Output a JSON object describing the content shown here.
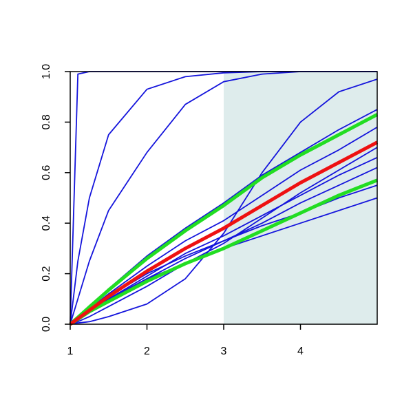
{
  "chart_data": {
    "type": "line",
    "x": [
      1,
      1.1,
      1.25,
      1.5,
      2,
      2.5,
      3,
      3.5,
      4,
      4.5,
      5
    ],
    "xlim": [
      1,
      5
    ],
    "xticks": [
      1,
      2,
      3,
      4
    ],
    "ylim": [
      0,
      1
    ],
    "yticks": [
      {
        "value": 0,
        "label": "0.0"
      },
      {
        "value": 0.2,
        "label": "0.2"
      },
      {
        "value": 0.4,
        "label": "0.4"
      },
      {
        "value": 0.6,
        "label": "0.6"
      },
      {
        "value": 0.8,
        "label": "0.8"
      },
      {
        "value": 1,
        "label": "1.0"
      }
    ],
    "shaded_region": {
      "xlim": [
        3,
        5
      ],
      "color": "#deecec"
    },
    "series": [
      {
        "color": "#1414dc",
        "values": [
          0,
          0.99,
          1,
          1,
          1,
          1,
          1,
          1,
          1,
          1,
          1
        ]
      },
      {
        "color": "#1414dc",
        "values": [
          0,
          0.25,
          0.5,
          0.75,
          0.93,
          0.98,
          0.995,
          1,
          1,
          1,
          1
        ]
      },
      {
        "color": "#1414dc",
        "values": [
          0,
          0.1,
          0.25,
          0.45,
          0.68,
          0.87,
          0.96,
          0.99,
          1,
          1,
          1
        ]
      },
      {
        "color": "#1414dc",
        "values": [
          0,
          0.005,
          0.01,
          0.03,
          0.08,
          0.18,
          0.36,
          0.6,
          0.8,
          0.92,
          0.97
        ]
      },
      {
        "color": "#1414dc",
        "values": [
          0,
          0.028,
          0.07,
          0.14,
          0.27,
          0.38,
          0.48,
          0.59,
          0.68,
          0.77,
          0.85
        ]
      },
      {
        "color": "#1414dc",
        "values": [
          0,
          0.024,
          0.06,
          0.12,
          0.23,
          0.33,
          0.41,
          0.51,
          0.61,
          0.69,
          0.78
        ]
      },
      {
        "color": "#1414dc",
        "values": [
          0,
          0.02,
          0.05,
          0.1,
          0.19,
          0.28,
          0.35,
          0.43,
          0.51,
          0.59,
          0.66
        ]
      },
      {
        "color": "#1414dc",
        "values": [
          0,
          0.019,
          0.047,
          0.095,
          0.18,
          0.26,
          0.33,
          0.4,
          0.48,
          0.55,
          0.62
        ]
      },
      {
        "color": "#1414dc",
        "values": [
          0,
          0.022,
          0.055,
          0.11,
          0.2,
          0.27,
          0.33,
          0.39,
          0.44,
          0.5,
          0.55
        ]
      },
      {
        "color": "#1414dc",
        "values": [
          0,
          0.02,
          0.05,
          0.1,
          0.18,
          0.24,
          0.3,
          0.35,
          0.4,
          0.45,
          0.5
        ]
      },
      {
        "color": "#1414dc",
        "values": [
          0,
          0.01,
          0.03,
          0.07,
          0.15,
          0.24,
          0.32,
          0.42,
          0.52,
          0.61,
          0.7
        ]
      },
      {
        "color": "#22dd22",
        "values": [
          0,
          0.027,
          0.068,
          0.135,
          0.26,
          0.37,
          0.47,
          0.58,
          0.67,
          0.75,
          0.83
        ]
      },
      {
        "color": "#22dd22",
        "values": [
          0,
          0.02,
          0.05,
          0.09,
          0.17,
          0.24,
          0.3,
          0.37,
          0.44,
          0.51,
          0.57
        ]
      },
      {
        "color": "#ee1111",
        "values": [
          0,
          0.022,
          0.055,
          0.11,
          0.21,
          0.3,
          0.38,
          0.47,
          0.56,
          0.64,
          0.72
        ]
      }
    ]
  }
}
